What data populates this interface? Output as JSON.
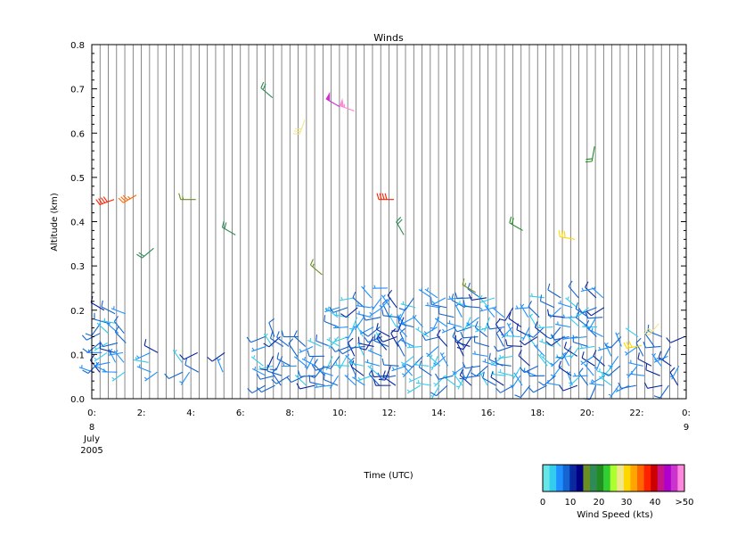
{
  "chart_data": {
    "type": "wind-barbs",
    "title": "Winds",
    "ylabel": "Altitude (km)",
    "xlabel": "Time (UTC)",
    "ylim": [
      0.0,
      0.8
    ],
    "yticks": [
      "0.0",
      "0.1",
      "0.2",
      "0.3",
      "0.4",
      "0.5",
      "0.6",
      "0.7",
      "0.8"
    ],
    "xlim_hours": [
      0,
      24
    ],
    "xticks": [
      "0:",
      "2:",
      "4:",
      "6:",
      "8:",
      "10:",
      "12:",
      "14:",
      "16:",
      "18:",
      "20:",
      "22:",
      "0:"
    ],
    "date_start": [
      "8",
      "July",
      "2005"
    ],
    "date_end": [
      "9"
    ],
    "grid": "vertical lines every 20 minutes",
    "colorbar": {
      "title": "Wind Speed (kts)",
      "tick_labels": [
        "0",
        "10",
        "20",
        "30",
        "40",
        ">50"
      ],
      "colors": [
        "#66e6e6",
        "#33ccee",
        "#1e90ff",
        "#1464d2",
        "#0a28a0",
        "#000080",
        "#6b8e23",
        "#2e8b57",
        "#228b22",
        "#32cd32",
        "#adff2f",
        "#f0e68c",
        "#ffd700",
        "#ffa500",
        "#ff6600",
        "#ff2200",
        "#cc0000",
        "#c71585",
        "#b000d0",
        "#cc33cc",
        "#ff88dd"
      ]
    },
    "observations_note": "Dense low-level barbs (0.0-0.25 km) from ~7 to 24 UTC, mostly 0-10 kts; sparse higher-level barbs of mixed speeds.",
    "sample_barbs": [
      {
        "t": 0.9,
        "alt": 0.45,
        "speed": 38,
        "dir": 250
      },
      {
        "t": 1.8,
        "alt": 0.46,
        "speed": 36,
        "dir": 240
      },
      {
        "t": 2.5,
        "alt": 0.34,
        "speed": 18,
        "dir": 230
      },
      {
        "t": 4.2,
        "alt": 0.45,
        "speed": 17,
        "dir": 270
      },
      {
        "t": 5.8,
        "alt": 0.37,
        "speed": 18,
        "dir": 300
      },
      {
        "t": 7.3,
        "alt": 0.68,
        "speed": 18,
        "dir": 310
      },
      {
        "t": 8.6,
        "alt": 0.63,
        "speed": 28,
        "dir": 200
      },
      {
        "t": 9.3,
        "alt": 0.28,
        "speed": 16,
        "dir": 310
      },
      {
        "t": 10.0,
        "alt": 0.66,
        "speed": 48,
        "dir": 300
      },
      {
        "t": 10.6,
        "alt": 0.65,
        "speed": 55,
        "dir": 290
      },
      {
        "t": 12.2,
        "alt": 0.45,
        "speed": 38,
        "dir": 270
      },
      {
        "t": 12.6,
        "alt": 0.37,
        "speed": 18,
        "dir": 330
      },
      {
        "t": 17.4,
        "alt": 0.38,
        "speed": 20,
        "dir": 300
      },
      {
        "t": 19.5,
        "alt": 0.36,
        "speed": 30,
        "dir": 280
      },
      {
        "t": 20.3,
        "alt": 0.57,
        "speed": 20,
        "dir": 190
      },
      {
        "t": 22.2,
        "alt": 0.12,
        "speed": 30,
        "dir": 260
      },
      {
        "t": 22.9,
        "alt": 0.17,
        "speed": 28,
        "dir": 220
      },
      {
        "t": 0.5,
        "alt": 0.2,
        "speed": 12,
        "dir": 300
      },
      {
        "t": 11.9,
        "alt": 0.11,
        "speed": 11,
        "dir": 320
      },
      {
        "t": 15.5,
        "alt": 0.24,
        "speed": 16,
        "dir": 300
      }
    ]
  }
}
